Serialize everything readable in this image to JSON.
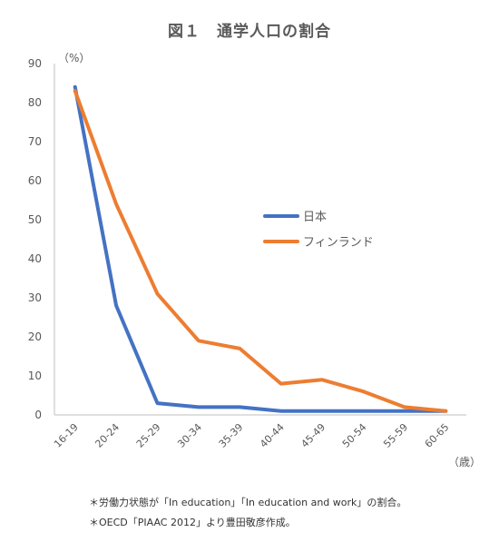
{
  "chart_data": {
    "type": "line",
    "title": "図１　通学人口の割合",
    "ylabel_unit": "（%）",
    "xlabel_unit": "（歳）",
    "categories": [
      "16-19",
      "20-24",
      "25-29",
      "30-34",
      "35-39",
      "40-44",
      "45-49",
      "50-54",
      "55-59",
      "60-65"
    ],
    "series": [
      {
        "name": "日本",
        "color": "#4472C4",
        "values": [
          84,
          28,
          3,
          2,
          2,
          1,
          1,
          1,
          1,
          1
        ]
      },
      {
        "name": "フィンランド",
        "color": "#ED7D31",
        "values": [
          83,
          54,
          31,
          19,
          17,
          8,
          9,
          6,
          2,
          1
        ]
      }
    ],
    "ylim": [
      0,
      90
    ],
    "yticks": [
      0,
      10,
      20,
      30,
      40,
      50,
      60,
      70,
      80,
      90
    ],
    "grid": false,
    "legend_position": "right-center"
  },
  "notes": [
    "＊労働力状態が「In education」「In education and work」の割合。",
    "＊OECD「PIAAC 2012」より豊田敬彦作成。"
  ]
}
